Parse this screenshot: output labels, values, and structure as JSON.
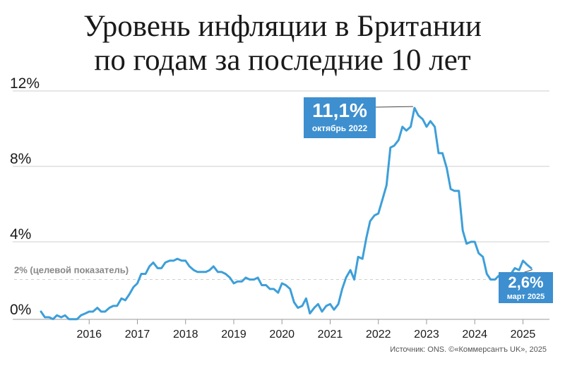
{
  "title": {
    "line1": "Уровень инфляции в Британии",
    "line2": "по годам за последние 10 лет"
  },
  "source": "Источник: ONS. ©«Коммерсантъ UK», 2025",
  "target": {
    "label": "2% (целевой показатель)",
    "value": 2
  },
  "callouts": {
    "peak": {
      "value_label": "11,1%",
      "date_label": "октябрь 2022"
    },
    "last": {
      "value_label": "2,6%",
      "date_label": "март 2025"
    }
  },
  "colors": {
    "line": "#3d9fd9",
    "callout": "#3d8fcf",
    "grid": "#cccccc"
  },
  "chart_data": {
    "type": "line",
    "ylim": [
      0,
      12
    ],
    "yticks": [
      "0%",
      "4%",
      "8%",
      "12%"
    ],
    "ytick_values": [
      0,
      4,
      8,
      12
    ],
    "xticks": [
      "2016",
      "2017",
      "2018",
      "2019",
      "2020",
      "2021",
      "2022",
      "2023",
      "2024",
      "2025"
    ],
    "xtick_values": [
      2016,
      2017,
      2018,
      2019,
      2020,
      2021,
      2022,
      2023,
      2024,
      2025
    ],
    "xlim": [
      2015.0,
      2025.55
    ],
    "grid": true,
    "series": [
      {
        "x": [
          2015.0,
          2015.08,
          2015.17,
          2015.25,
          2015.33,
          2015.42,
          2015.5,
          2015.58,
          2015.67,
          2015.75,
          2015.83,
          2015.92,
          2016.0,
          2016.08,
          2016.17,
          2016.25,
          2016.33,
          2016.42,
          2016.5,
          2016.58,
          2016.67,
          2016.75,
          2016.83,
          2016.92,
          2017.0,
          2017.08,
          2017.17,
          2017.25,
          2017.33,
          2017.42,
          2017.5,
          2017.58,
          2017.67,
          2017.75,
          2017.83,
          2017.92,
          2018.0,
          2018.08,
          2018.17,
          2018.25,
          2018.33,
          2018.42,
          2018.5,
          2018.58,
          2018.67,
          2018.75,
          2018.83,
          2018.92,
          2019.0,
          2019.08,
          2019.17,
          2019.25,
          2019.33,
          2019.42,
          2019.5,
          2019.58,
          2019.67,
          2019.75,
          2019.83,
          2019.92,
          2020.0,
          2020.08,
          2020.17,
          2020.25,
          2020.33,
          2020.42,
          2020.5,
          2020.58,
          2020.67,
          2020.75,
          2020.83,
          2020.92,
          2021.0,
          2021.08,
          2021.17,
          2021.25,
          2021.33,
          2021.42,
          2021.5,
          2021.58,
          2021.67,
          2021.75,
          2021.83,
          2021.92,
          2022.0,
          2022.08,
          2022.17,
          2022.25,
          2022.33,
          2022.42,
          2022.5,
          2022.58,
          2022.67,
          2022.75,
          2022.83,
          2022.92,
          2023.0,
          2023.08,
          2023.17,
          2023.25,
          2023.33,
          2023.42,
          2023.5,
          2023.58,
          2023.67,
          2023.75,
          2023.83,
          2023.92,
          2024.0,
          2024.08,
          2024.17,
          2024.25,
          2024.33,
          2024.42,
          2024.5,
          2024.58,
          2024.67,
          2024.75,
          2024.83,
          2024.92,
          2025.0,
          2025.08,
          2025.17
        ],
        "y": [
          0.3,
          0.0,
          0.0,
          -0.1,
          0.1,
          0.0,
          0.1,
          -0.1,
          -0.1,
          -0.1,
          0.1,
          0.2,
          0.3,
          0.3,
          0.5,
          0.3,
          0.3,
          0.5,
          0.6,
          0.6,
          1.0,
          0.9,
          1.2,
          1.6,
          1.8,
          2.3,
          2.3,
          2.7,
          2.9,
          2.6,
          2.6,
          2.9,
          3.0,
          3.0,
          3.1,
          3.0,
          3.0,
          2.7,
          2.5,
          2.4,
          2.4,
          2.4,
          2.5,
          2.7,
          2.4,
          2.4,
          2.3,
          2.1,
          1.8,
          1.9,
          1.9,
          2.1,
          2.0,
          2.0,
          2.1,
          1.7,
          1.7,
          1.5,
          1.5,
          1.3,
          1.8,
          1.7,
          1.5,
          0.8,
          0.5,
          0.6,
          1.0,
          0.2,
          0.5,
          0.7,
          0.3,
          0.6,
          0.7,
          0.4,
          0.7,
          1.5,
          2.1,
          2.5,
          2.0,
          3.2,
          3.1,
          4.2,
          5.1,
          5.4,
          5.5,
          6.2,
          7.0,
          9.0,
          9.1,
          9.4,
          10.1,
          9.9,
          10.1,
          11.1,
          10.7,
          10.5,
          10.1,
          10.4,
          10.1,
          8.7,
          8.7,
          7.9,
          6.8,
          6.7,
          6.7,
          4.6,
          3.9,
          4.0,
          4.0,
          3.4,
          3.2,
          2.3,
          2.0,
          2.0,
          2.2,
          2.2,
          1.7,
          2.3,
          2.6,
          2.5,
          3.0,
          2.8,
          2.6
        ]
      }
    ]
  }
}
